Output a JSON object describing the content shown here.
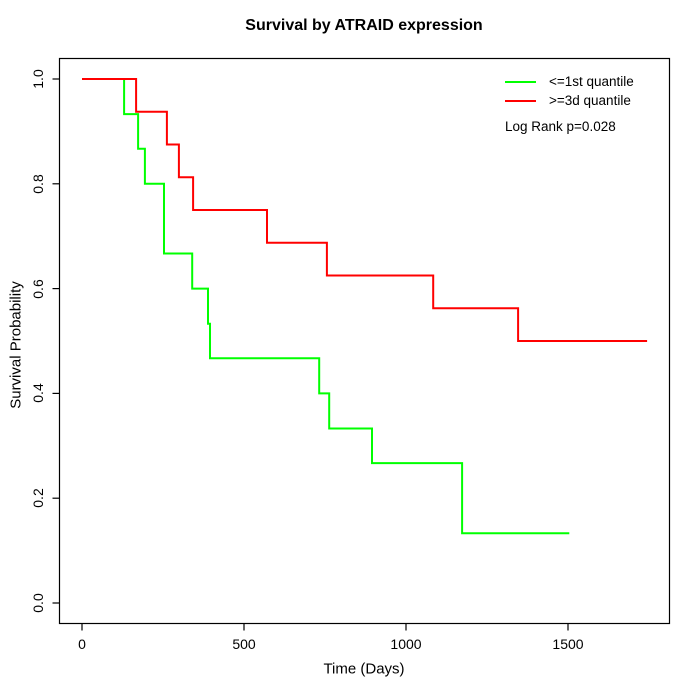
{
  "title": "Survival by ATRAID expression",
  "x_axis": {
    "label": "Time (Days)",
    "ticks": [
      0,
      500,
      1000,
      1500
    ]
  },
  "y_axis": {
    "label": "Survival Probability",
    "ticks": [
      "0.0",
      "0.2",
      "0.4",
      "0.6",
      "0.8",
      "1.0"
    ]
  },
  "legend": {
    "items": [
      {
        "label": "<=1st quantile",
        "color": "#00ff00"
      },
      {
        "label": ">=3d quantile",
        "color": "#ff0000"
      }
    ],
    "note": "Log Rank p=0.028"
  },
  "chart_data": {
    "type": "line",
    "subtype": "kaplan-meier-step",
    "title": "Survival by ATRAID expression",
    "xlabel": "Time (Days)",
    "ylabel": "Survival Probability",
    "xlim": [
      0,
      1750
    ],
    "ylim": [
      0.0,
      1.0
    ],
    "x_ticks": [
      0,
      500,
      1000,
      1500
    ],
    "y_ticks": [
      0.0,
      0.2,
      0.4,
      0.6,
      0.8,
      1.0
    ],
    "grid": false,
    "legend_position": "top-right",
    "annotation": "Log Rank p=0.028",
    "series": [
      {
        "name": "<=1st quantile",
        "color": "#00ff00",
        "steps": [
          [
            0,
            1.0
          ],
          [
            130,
            0.933
          ],
          [
            173,
            0.867
          ],
          [
            194,
            0.8
          ],
          [
            253,
            0.667
          ],
          [
            340,
            0.6
          ],
          [
            389,
            0.533
          ],
          [
            395,
            0.467
          ],
          [
            732,
            0.4
          ],
          [
            763,
            0.333
          ],
          [
            895,
            0.267
          ],
          [
            1173,
            0.133
          ]
        ],
        "end_time": 1504
      },
      {
        "name": ">=3d quantile",
        "color": "#ff0000",
        "steps": [
          [
            0,
            1.0
          ],
          [
            167,
            0.9375
          ],
          [
            262,
            0.875
          ],
          [
            299,
            0.8125
          ],
          [
            343,
            0.75
          ],
          [
            571,
            0.6875
          ],
          [
            756,
            0.625
          ],
          [
            1084,
            0.5625
          ],
          [
            1346,
            0.5
          ]
        ],
        "end_time": 1744
      }
    ]
  }
}
